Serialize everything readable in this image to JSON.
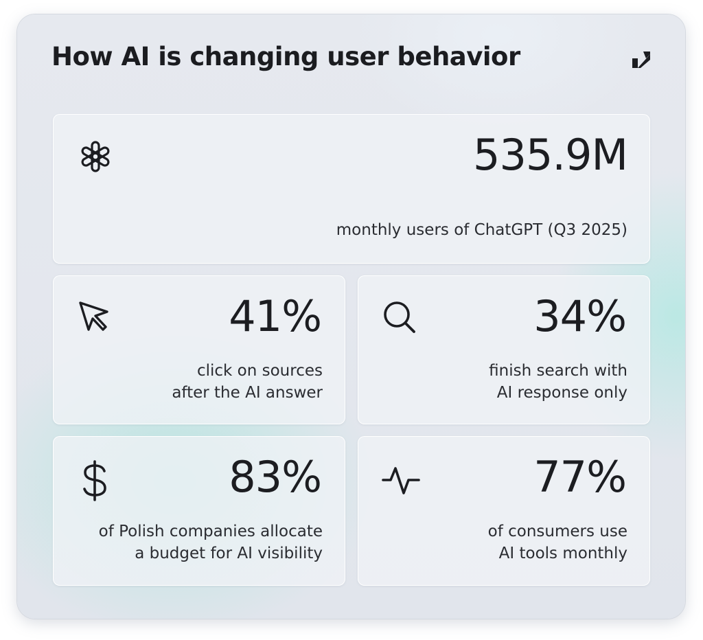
{
  "title": "How AI is changing user behavior",
  "brand_icon": "checkmark-logo-icon",
  "stats": [
    {
      "icon": "chatgpt-logo-icon",
      "value": "535.9M",
      "caption_lines": [
        "monthly users of ChatGPT (Q3 2025)"
      ]
    },
    {
      "icon": "cursor-arrow-icon",
      "value": "41%",
      "caption_lines": [
        "click on sources",
        "after the AI answer"
      ]
    },
    {
      "icon": "search-icon",
      "value": "34%",
      "caption_lines": [
        "finish search with",
        "AI response only"
      ]
    },
    {
      "icon": "dollar-icon",
      "value": "83%",
      "caption_lines": [
        "of Polish companies allocate",
        "a budget for AI visibility"
      ]
    },
    {
      "icon": "activity-pulse-icon",
      "value": "77%",
      "caption_lines": [
        "of consumers use",
        "AI tools monthly"
      ]
    }
  ],
  "colors": {
    "text": "#1c1d21",
    "accent_glow": "#96e4d6",
    "card_background": "#e3e7ed"
  }
}
